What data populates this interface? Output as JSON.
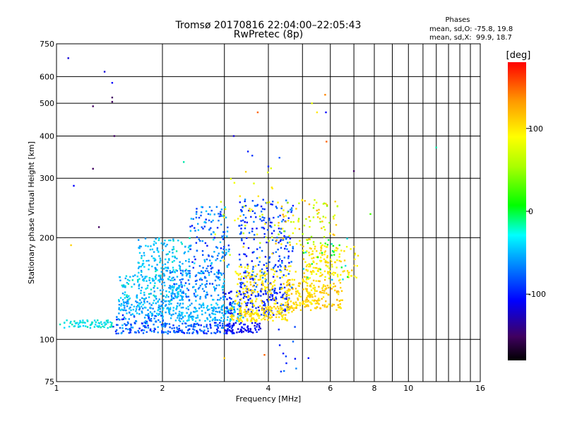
{
  "chart_data": {
    "type": "scatter",
    "title": "Tromsø 20170816 22:04:00–22:05:43",
    "subtitle": "RwPretec (8p)",
    "xlabel": "Frequency [MHz]",
    "ylabel": "Stationary phase Virtual Height [km]",
    "x_scale": "log",
    "y_scale": "log",
    "xlim": [
      1,
      16
    ],
    "ylim": [
      75,
      750
    ],
    "x_ticks": [
      1,
      2,
      4,
      6,
      8,
      10,
      16
    ],
    "x_minor_ticks": [
      3,
      5,
      7,
      9,
      11,
      12,
      13,
      14,
      15
    ],
    "y_ticks": [
      75,
      100,
      200,
      300,
      400,
      500,
      600,
      750
    ],
    "grid": true,
    "stats": {
      "heading": "Phases",
      "line_o": "mean, sd,O: -75.8, 19.8",
      "line_x": "mean, sd,X:  99.9, 18.7"
    },
    "colorbar": {
      "label": "[deg]",
      "range": [
        -180,
        180
      ],
      "ticks": [
        "100",
        "0",
        "-100"
      ],
      "tick_values": [
        100,
        0,
        -100
      ]
    },
    "clusters": [
      {
        "f": [
          1.02,
          1.45
        ],
        "h": [
          108,
          114
        ],
        "p": [
          -35,
          -20
        ],
        "n": 70
      },
      {
        "f": [
          1.45,
          2.05
        ],
        "h": [
          104,
          118
        ],
        "p": [
          -110,
          -40
        ],
        "n": 120
      },
      {
        "f": [
          1.5,
          2.1
        ],
        "h": [
          118,
          130
        ],
        "p": [
          -70,
          -30
        ],
        "n": 120
      },
      {
        "f": [
          1.5,
          2.3
        ],
        "h": [
          130,
          155
        ],
        "p": [
          -60,
          -20
        ],
        "n": 150
      },
      {
        "f": [
          1.7,
          2.4
        ],
        "h": [
          150,
          200
        ],
        "p": [
          -60,
          -20
        ],
        "n": 150
      },
      {
        "f": [
          2.0,
          3.2
        ],
        "h": [
          104,
          112
        ],
        "p": [
          -110,
          -60
        ],
        "n": 120
      },
      {
        "f": [
          2.1,
          3.4
        ],
        "h": [
          113,
          128
        ],
        "p": [
          -60,
          -30
        ],
        "n": 180
      },
      {
        "f": [
          2.1,
          3.0
        ],
        "h": [
          130,
          160
        ],
        "p": [
          -90,
          -30
        ],
        "n": 160
      },
      {
        "f": [
          2.4,
          3.1
        ],
        "h": [
          160,
          250
        ],
        "p": [
          -110,
          -30
        ],
        "n": 130
      },
      {
        "f": [
          3.0,
          3.8
        ],
        "h": [
          104,
          112
        ],
        "p": [
          -125,
          -95
        ],
        "n": 70
      },
      {
        "f": [
          3.0,
          4.6
        ],
        "h": [
          118,
          140
        ],
        "p": [
          -120,
          -80
        ],
        "n": 150
      },
      {
        "f": [
          3.3,
          4.7
        ],
        "h": [
          140,
          260
        ],
        "p": [
          -115,
          -60
        ],
        "n": 230
      },
      {
        "f": [
          3.1,
          4.7
        ],
        "h": [
          113,
          125
        ],
        "p": [
          90,
          120
        ],
        "n": 160
      },
      {
        "f": [
          3.2,
          5.5
        ],
        "h": [
          125,
          165
        ],
        "p": [
          85,
          115
        ],
        "n": 190
      },
      {
        "f": [
          4.5,
          6.5
        ],
        "h": [
          122,
          150
        ],
        "p": [
          95,
          125
        ],
        "n": 170
      },
      {
        "f": [
          5.0,
          7.2
        ],
        "h": [
          150,
          190
        ],
        "p": [
          80,
          115
        ],
        "n": 140
      },
      {
        "f": [
          4.2,
          6.3
        ],
        "h": [
          190,
          260
        ],
        "p": [
          40,
          130
        ],
        "n": 90
      },
      {
        "f": [
          2.8,
          4.2
        ],
        "h": [
          170,
          330
        ],
        "p": [
          60,
          110
        ],
        "n": 40
      },
      {
        "f": [
          5.0,
          6.8
        ],
        "h": [
          150,
          200
        ],
        "p": [
          -40,
          20
        ],
        "n": 25
      },
      {
        "f": [
          4.2,
          4.8
        ],
        "h": [
          80,
          110
        ],
        "p": [
          -110,
          -60
        ],
        "n": 10
      }
    ],
    "points": [
      {
        "f": 1.08,
        "h": 680,
        "p": -120
      },
      {
        "f": 1.37,
        "h": 620,
        "p": -120
      },
      {
        "f": 1.44,
        "h": 575,
        "p": -110
      },
      {
        "f": 1.44,
        "h": 520,
        "p": -150
      },
      {
        "f": 1.44,
        "h": 505,
        "p": -150
      },
      {
        "f": 1.27,
        "h": 490,
        "p": -150
      },
      {
        "f": 1.46,
        "h": 400,
        "p": -150
      },
      {
        "f": 1.27,
        "h": 320,
        "p": -150
      },
      {
        "f": 1.12,
        "h": 285,
        "p": -110
      },
      {
        "f": 1.32,
        "h": 215,
        "p": -150
      },
      {
        "f": 3.19,
        "h": 400,
        "p": -120
      },
      {
        "f": 3.73,
        "h": 470,
        "p": 150
      },
      {
        "f": 5.32,
        "h": 500,
        "p": 80
      },
      {
        "f": 5.8,
        "h": 530,
        "p": 140
      },
      {
        "f": 5.5,
        "h": 470,
        "p": 100
      },
      {
        "f": 5.83,
        "h": 470,
        "p": -110
      },
      {
        "f": 5.85,
        "h": 385,
        "p": 150
      },
      {
        "f": 12.0,
        "h": 370,
        "p": -20
      },
      {
        "f": 7.0,
        "h": 315,
        "p": -150
      },
      {
        "f": 1.1,
        "h": 190,
        "p": 110
      },
      {
        "f": 3.0,
        "h": 88,
        "p": 110
      },
      {
        "f": 3.9,
        "h": 90,
        "p": 150
      },
      {
        "f": 5.2,
        "h": 88,
        "p": -110
      },
      {
        "f": 4.5,
        "h": 85,
        "p": -100
      },
      {
        "f": 2.3,
        "h": 335,
        "p": -20
      },
      {
        "f": 3.5,
        "h": 360,
        "p": -100
      },
      {
        "f": 3.6,
        "h": 350,
        "p": -90
      },
      {
        "f": 4.0,
        "h": 325,
        "p": -95
      },
      {
        "f": 4.3,
        "h": 345,
        "p": -80
      },
      {
        "f": 7.8,
        "h": 235,
        "p": 20
      }
    ]
  }
}
